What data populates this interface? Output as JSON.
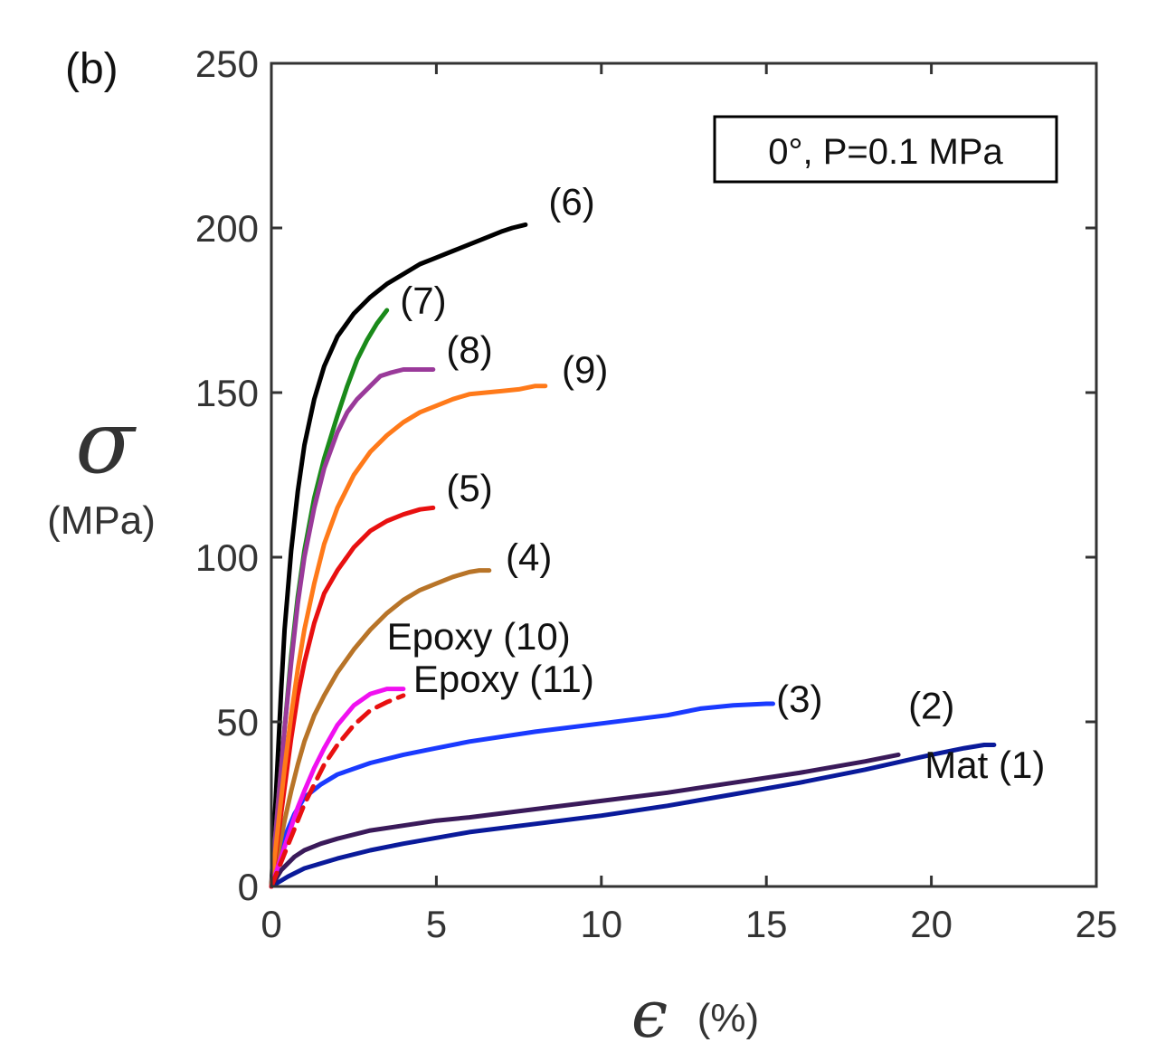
{
  "panel_label": "(b)",
  "legend_text": "0°,  P=0.1 MPa",
  "colors": {
    "axis": "#333333",
    "c1": "#0a1a9a",
    "c2": "#3a1a5a",
    "c3": "#1a3aff",
    "c4": "#b87428",
    "c5": "#e81010",
    "c6": "#000000",
    "c7": "#1a8a1a",
    "c8": "#9a3a9a",
    "c9": "#ff7a1a",
    "c10": "#f010f0",
    "c11": "#e81010"
  },
  "chart_data": {
    "type": "line",
    "title": "",
    "xlabel": {
      "symbol": "ϵ",
      "unit": "(%)"
    },
    "ylabel": {
      "symbol": "σ",
      "unit": "(MPa)"
    },
    "xlim": [
      0,
      25
    ],
    "ylim": [
      0,
      250
    ],
    "xticks": [
      0,
      5,
      10,
      15,
      20,
      25
    ],
    "yticks": [
      0,
      50,
      100,
      150,
      200,
      250
    ],
    "grid": false,
    "series": [
      {
        "name": "Mat (1)",
        "color_key": "c1",
        "dashed": false,
        "x": [
          0,
          0.5,
          1,
          2,
          3,
          4,
          6,
          8,
          10,
          12,
          14,
          16,
          18,
          20,
          21,
          21.6,
          21.9
        ],
        "y": [
          0,
          3,
          5.5,
          8.5,
          11,
          13,
          16.5,
          19,
          21.5,
          24.5,
          28,
          31.5,
          35.5,
          40,
          42,
          43,
          43
        ]
      },
      {
        "name": "(2)",
        "color_key": "c2",
        "dashed": false,
        "x": [
          0,
          0.3,
          0.7,
          1,
          1.5,
          2,
          3,
          4,
          5,
          6,
          8,
          10,
          12,
          14,
          16,
          18,
          19
        ],
        "y": [
          0,
          5,
          9,
          11,
          13,
          14.5,
          17,
          18.5,
          20,
          21,
          23.5,
          26,
          28.5,
          31.5,
          34.5,
          38,
          40
        ]
      },
      {
        "name": "(3)",
        "color_key": "c3",
        "dashed": false,
        "x": [
          0,
          0.2,
          0.4,
          0.7,
          1,
          1.5,
          2,
          3,
          4,
          5,
          6,
          8,
          10,
          12,
          13,
          14,
          15,
          15.2
        ],
        "y": [
          0,
          8,
          15,
          22,
          27,
          31,
          34,
          37.5,
          40,
          42,
          44,
          47,
          49.5,
          52,
          54,
          55,
          55.5,
          55.5
        ]
      },
      {
        "name": "(4)",
        "color_key": "c4",
        "dashed": false,
        "x": [
          0,
          0.2,
          0.4,
          0.6,
          0.8,
          1,
          1.3,
          1.6,
          2,
          2.5,
          3,
          3.5,
          4,
          4.5,
          5,
          5.5,
          6,
          6.3,
          6.6
        ],
        "y": [
          0,
          10,
          20,
          29,
          37,
          44,
          52,
          58,
          65,
          72,
          78,
          83,
          87,
          90,
          92,
          94,
          95.5,
          96,
          96
        ]
      },
      {
        "name": "(5)",
        "color_key": "c5",
        "dashed": false,
        "x": [
          0,
          0.2,
          0.4,
          0.6,
          0.8,
          1,
          1.3,
          1.6,
          2,
          2.5,
          3,
          3.5,
          4,
          4.5,
          4.9
        ],
        "y": [
          0,
          15,
          30,
          45,
          58,
          68,
          80,
          89,
          96,
          103,
          108,
          111,
          113,
          114.5,
          115
        ]
      },
      {
        "name": "(6)",
        "color_key": "c6",
        "dashed": false,
        "x": [
          0,
          0.1,
          0.2,
          0.3,
          0.4,
          0.6,
          0.8,
          1,
          1.3,
          1.6,
          2,
          2.5,
          3,
          3.5,
          4,
          4.5,
          5,
          5.5,
          6,
          6.5,
          7,
          7.3,
          7.7
        ],
        "y": [
          0,
          20,
          40,
          60,
          78,
          102,
          120,
          134,
          148,
          158,
          167,
          174,
          179,
          183,
          186,
          189,
          191,
          193,
          195,
          197,
          199,
          200,
          201
        ]
      },
      {
        "name": "(7)",
        "color_key": "c7",
        "dashed": false,
        "x": [
          0,
          0.2,
          0.4,
          0.6,
          0.8,
          1,
          1.3,
          1.6,
          2,
          2.3,
          2.6,
          2.9,
          3.2,
          3.5
        ],
        "y": [
          0,
          25,
          48,
          70,
          88,
          102,
          118,
          130,
          143,
          152,
          160,
          166,
          171,
          175
        ]
      },
      {
        "name": "(8)",
        "color_key": "c8",
        "dashed": false,
        "x": [
          0,
          0.2,
          0.4,
          0.6,
          0.8,
          1,
          1.3,
          1.6,
          2,
          2.3,
          2.6,
          3,
          3.3,
          3.6,
          4,
          4.5,
          4.9
        ],
        "y": [
          0,
          25,
          48,
          68,
          86,
          100,
          115,
          127,
          138,
          144,
          148,
          152,
          155,
          156,
          157,
          157,
          157
        ]
      },
      {
        "name": "(9)",
        "color_key": "c9",
        "dashed": false,
        "x": [
          0,
          0.2,
          0.4,
          0.6,
          0.8,
          1,
          1.3,
          1.6,
          2,
          2.5,
          3,
          3.5,
          4,
          4.5,
          5,
          5.5,
          6,
          6.5,
          7,
          7.5,
          8,
          8.3
        ],
        "y": [
          0,
          18,
          36,
          52,
          66,
          78,
          92,
          104,
          115,
          125,
          132,
          137,
          141,
          144,
          146,
          148,
          149.5,
          150,
          150.5,
          151,
          152,
          152
        ]
      },
      {
        "name": "Epoxy (10)",
        "color_key": "c10",
        "dashed": false,
        "x": [
          0,
          0.2,
          0.4,
          0.6,
          0.8,
          1,
          1.3,
          1.6,
          2,
          2.5,
          3,
          3.5,
          4
        ],
        "y": [
          0,
          6,
          12,
          18,
          24,
          29,
          36,
          42,
          49,
          55,
          58.5,
          60,
          60
        ]
      },
      {
        "name": "Epoxy (11)",
        "color_key": "c11",
        "dashed": true,
        "x": [
          0,
          0.2,
          0.4,
          0.6,
          0.8,
          1,
          1.3,
          1.6,
          2,
          2.5,
          3,
          3.5,
          4
        ],
        "y": [
          0,
          5,
          10,
          15,
          20,
          25,
          31,
          37,
          43,
          49,
          53.5,
          56,
          58
        ]
      }
    ],
    "annotations": [
      {
        "text": "(6)",
        "x": 8.4,
        "y": 204
      },
      {
        "text": "(7)",
        "x": 3.9,
        "y": 174
      },
      {
        "text": "(8)",
        "x": 5.3,
        "y": 159
      },
      {
        "text": "(9)",
        "x": 8.8,
        "y": 153
      },
      {
        "text": "(5)",
        "x": 5.3,
        "y": 117
      },
      {
        "text": "(4)",
        "x": 7.1,
        "y": 96
      },
      {
        "text": "Epoxy (10)",
        "x": 3.5,
        "y": 72
      },
      {
        "text": "Epoxy (11)",
        "x": 4.3,
        "y": 59
      },
      {
        "text": "(3)",
        "x": 15.3,
        "y": 53
      },
      {
        "text": "(2)",
        "x": 19.3,
        "y": 51
      },
      {
        "text": "Mat (1)",
        "x": 19.8,
        "y": 33
      }
    ]
  }
}
